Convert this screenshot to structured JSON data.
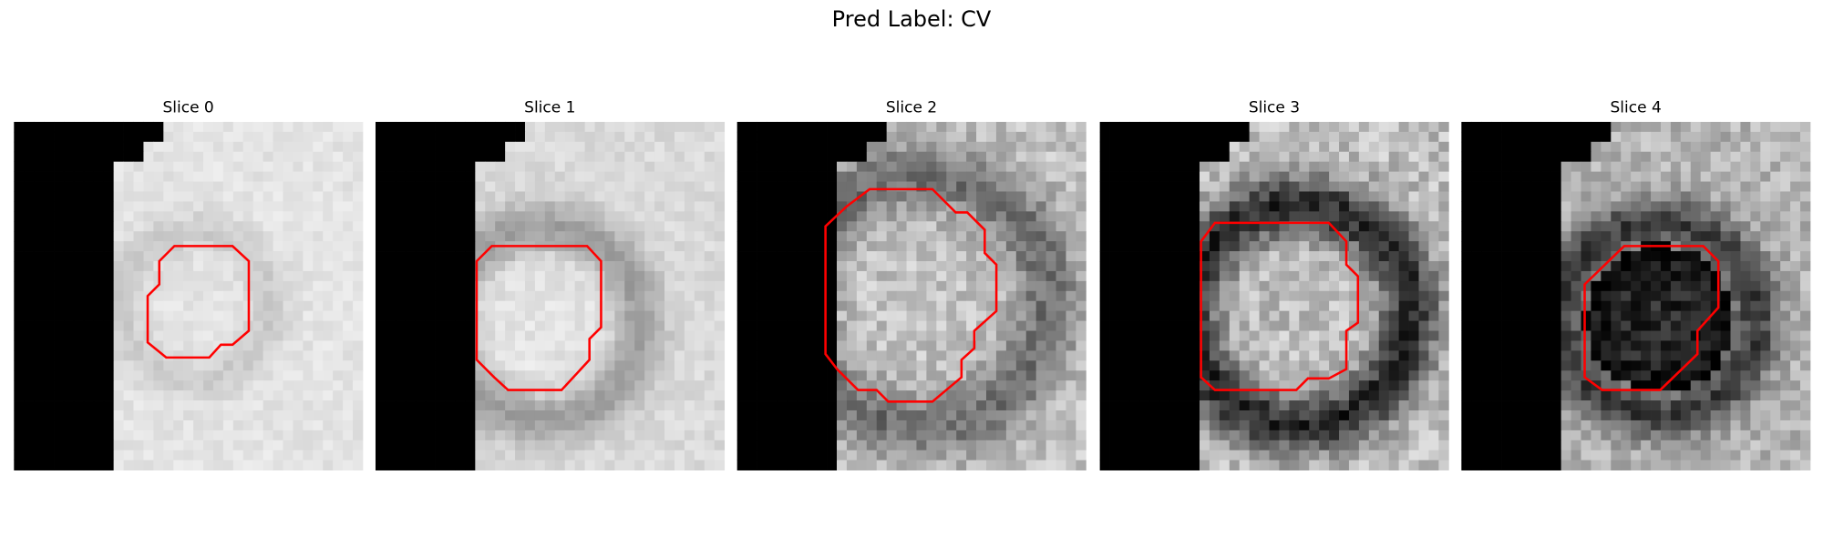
{
  "title": "Pred Label: CV",
  "panels": [
    "Slice 0",
    "Slice 1",
    "Slice 2",
    "Slice 3",
    "Slice 4"
  ]
}
